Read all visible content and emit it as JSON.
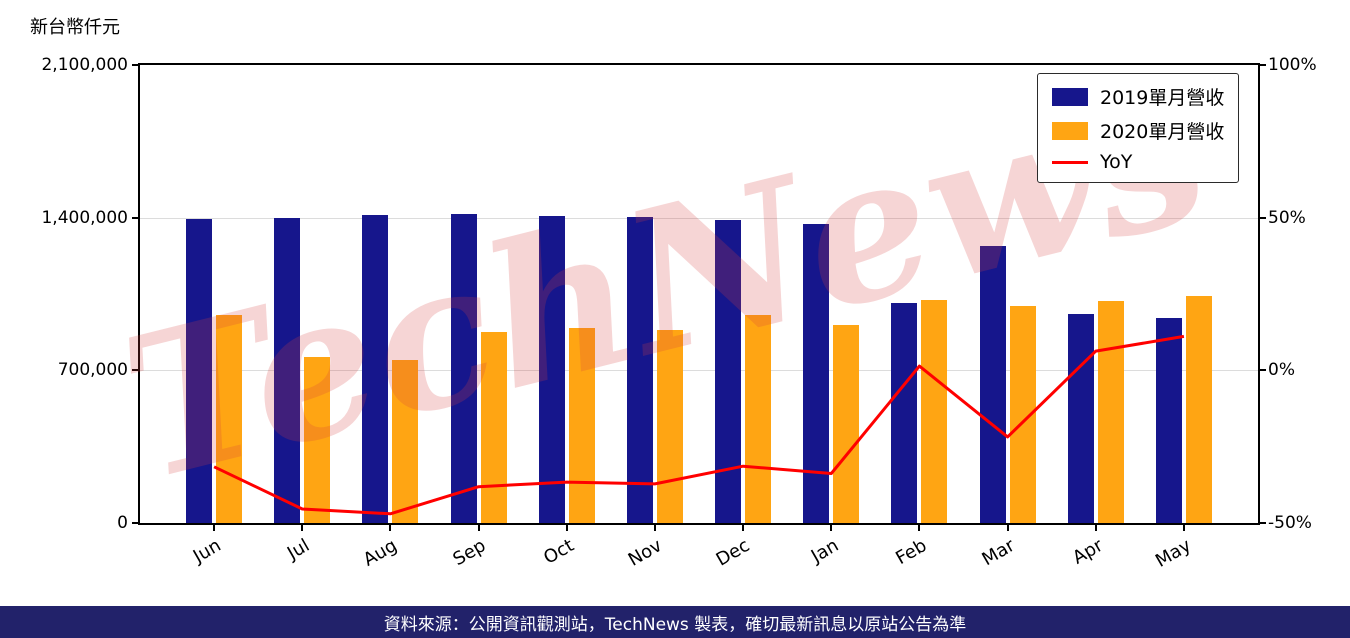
{
  "watermark": {
    "text": "TechNews"
  },
  "footer": {
    "text": "資料來源：公開資訊觀測站，TechNews 製表，確切最新訊息以原站公告為準",
    "bg_color": "#22226a",
    "text_color": "#ffffff"
  },
  "legend": [
    {
      "label": "2019單月營收",
      "color": "#16168c",
      "type": "bar"
    },
    {
      "label": "2020單月營收",
      "color": "#ffa513",
      "type": "bar"
    },
    {
      "label": "YoY",
      "color": "#ff0000",
      "type": "line"
    }
  ],
  "chart_data": {
    "type": "bar+line",
    "title": "",
    "categories": [
      "Jun",
      "Jul",
      "Aug",
      "Sep",
      "Oct",
      "Nov",
      "Dec",
      "Jan",
      "Feb",
      "Mar",
      "Apr",
      "May"
    ],
    "series": [
      {
        "name": "2019單月營收",
        "type": "bar",
        "axis": "left",
        "color": "#16168c",
        "values": [
          1393000,
          1398000,
          1412000,
          1418000,
          1408000,
          1405000,
          1388000,
          1372000,
          1008000,
          1270000,
          958000,
          938000
        ]
      },
      {
        "name": "2020單月營收",
        "type": "bar",
        "axis": "left",
        "color": "#ffa513",
        "values": [
          952000,
          763000,
          748000,
          878000,
          893000,
          883000,
          952000,
          908000,
          1022000,
          993000,
          1018000,
          1042000
        ]
      },
      {
        "name": "YoY",
        "type": "line",
        "axis": "right",
        "color": "#ff0000",
        "unit": "%",
        "values": [
          -31.6,
          -45.4,
          -47.0,
          -38.1,
          -36.6,
          -37.2,
          -31.4,
          -33.8,
          1.4,
          -21.8,
          6.3,
          11.1
        ]
      }
    ],
    "left_axis": {
      "label": "新台幣仟元",
      "min": 0,
      "max": 2100000,
      "ticks": [
        "2,100,000",
        "1,400,000",
        "700,000",
        "0"
      ],
      "tick_values": [
        2100000,
        1400000,
        700000,
        0
      ]
    },
    "right_axis": {
      "min": -50,
      "max": 100,
      "ticks": [
        "100%",
        "50%",
        "0%",
        "-50%"
      ],
      "tick_values": [
        100,
        50,
        0,
        -50
      ]
    },
    "grid": "horizontal",
    "legend_position": "upper right"
  }
}
